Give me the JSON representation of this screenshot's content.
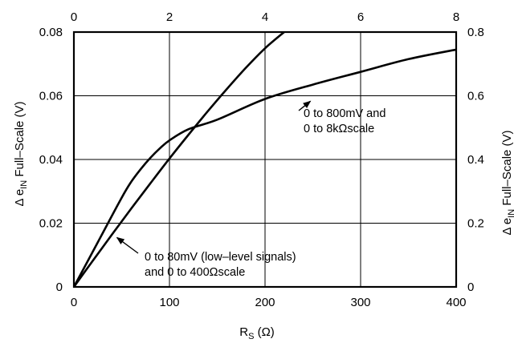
{
  "chart_data": {
    "type": "line",
    "title": "",
    "xlabel": "R",
    "xlabel_sub": "S",
    "xlabel_unit": " (Ω)",
    "ylabel_prefix": "Δ  e",
    "ylabel_sub": "IN",
    "ylabel_suffix": " Full–Scale (V)",
    "x_bottom": {
      "lim": [
        0,
        400
      ],
      "ticks": [
        0,
        100,
        200,
        300,
        400
      ],
      "tick_labels": [
        "0",
        "100",
        "200",
        "300",
        "400"
      ]
    },
    "x_top": {
      "lim": [
        0,
        8
      ],
      "ticks": [
        0,
        2,
        4,
        6,
        8
      ],
      "tick_labels": [
        "0",
        "2",
        "4",
        "6",
        "8"
      ]
    },
    "y_left": {
      "lim": [
        0,
        0.08
      ],
      "ticks": [
        0,
        0.02,
        0.04,
        0.06,
        0.08
      ],
      "tick_labels": [
        "0",
        "0.02",
        "0.04",
        "0.06",
        "0.08"
      ]
    },
    "y_right": {
      "lim": [
        0,
        0.8
      ],
      "ticks": [
        0,
        0.2,
        0.4,
        0.6,
        0.8
      ],
      "tick_labels": [
        "0",
        "0.2",
        "0.4",
        "0.6",
        "0.8"
      ]
    },
    "grid": true,
    "series": [
      {
        "axes": "bottom-left",
        "x": [
          0,
          20,
          40,
          60,
          80,
          100,
          120,
          140,
          160,
          180,
          200,
          220
        ],
        "y": [
          0,
          0.0083,
          0.0165,
          0.0246,
          0.0325,
          0.0403,
          0.0478,
          0.0551,
          0.0621,
          0.0688,
          0.0749,
          0.08
        ]
      },
      {
        "axes": "top-right",
        "x": [
          0,
          0.5,
          1.0,
          1.2,
          1.4,
          1.6,
          1.8,
          2.0,
          2.4,
          3.0,
          4.0,
          5.0,
          6.0,
          7.0,
          8.0
        ],
        "y": [
          0,
          0.14,
          0.28,
          0.33,
          0.37,
          0.405,
          0.435,
          0.46,
          0.495,
          0.525,
          0.59,
          0.635,
          0.675,
          0.715,
          0.745
        ]
      }
    ],
    "annotations": [
      {
        "lines": [
          "0 to 800mV and",
          "0 to 8kΩscale"
        ],
        "target": {
          "axes": "top-right",
          "x": 4.95,
          "y": 0.583
        }
      },
      {
        "lines": [
          "0 to 80mV (low–level signals)",
          "and 0 to 400Ωscale"
        ],
        "target": {
          "axes": "bottom-left",
          "x": 45,
          "y": 0.0155
        }
      }
    ]
  }
}
